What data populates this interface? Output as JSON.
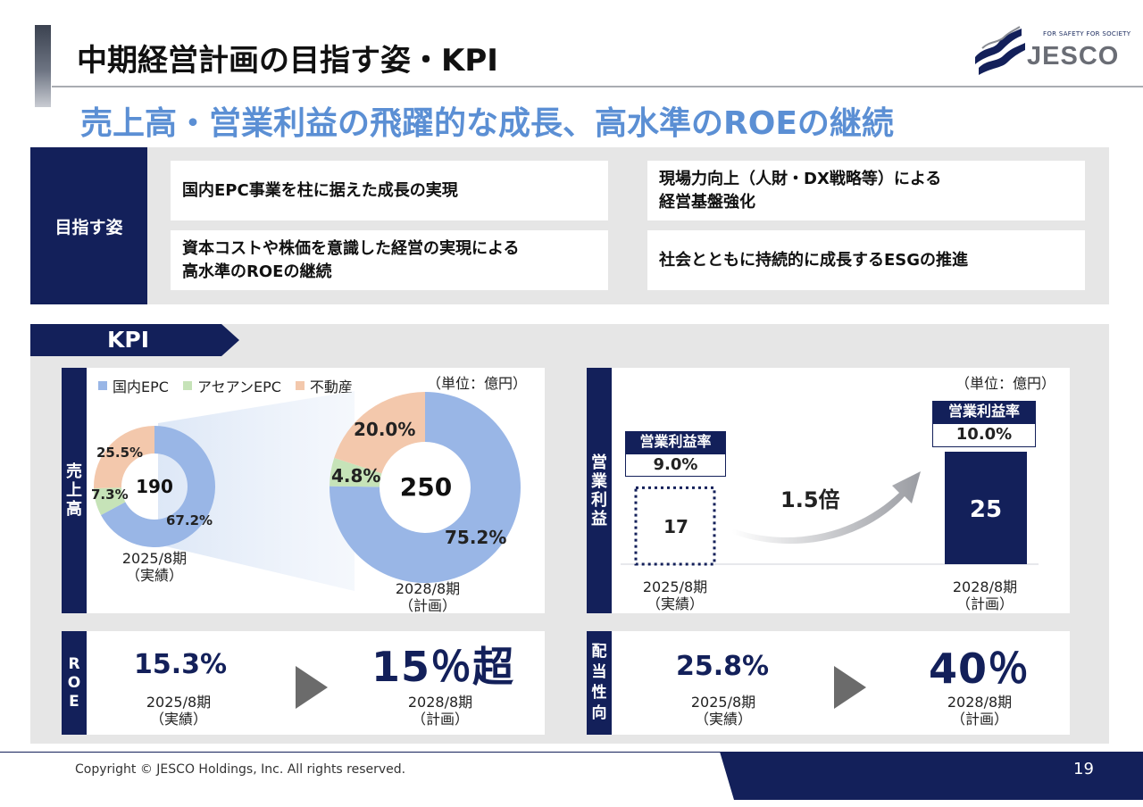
{
  "header": {
    "title": "中期経営計画の目指す姿・KPI",
    "subtitle": "売上高・営業利益の飛躍的な成長、高水準のROEの継続",
    "logo_tagline": "FOR SAFETY FOR SOCIETY",
    "logo_text": "JESCO"
  },
  "goals": {
    "label": "目指す姿",
    "items": [
      "国内EPC事業を柱に据えた成長の実現",
      "現場力向上（人財・DX戦略等）による\n経営基盤強化",
      "資本コストや株価を意識した経営の実現による\n高水準のROEの継続",
      "社会とともに持続的に成長するESGの推進"
    ]
  },
  "kpi": {
    "tab_label": "KPI",
    "sales": {
      "side_label": "売\n上\n高",
      "unit": "（単位：億円）",
      "legend": [
        "国内EPC",
        "アセアンEPC",
        "不動産"
      ],
      "colors": {
        "domestic": "#99b6e6",
        "asean": "#c6e3b8",
        "realestate": "#f3c8ac"
      },
      "actual": {
        "total": "190",
        "period": "2025/8期\n（実績）",
        "labels": {
          "domestic": "67.2%",
          "asean": "7.3%",
          "realestate": "25.5%"
        }
      },
      "plan": {
        "total": "250",
        "period": "2028/8期\n（計画）",
        "labels": {
          "domestic": "75.2%",
          "asean": "4.8%",
          "realestate": "20.0%"
        }
      }
    },
    "op_income": {
      "side_label": "営\n業\n利\n益",
      "unit": "（単位：億円）",
      "margin_heading": "営業利益率",
      "actual": {
        "value": "17",
        "margin": "9.0%",
        "period": "2025/8期\n（実績）"
      },
      "plan": {
        "value": "25",
        "margin": "10.0%",
        "period": "2028/8期\n（計画）"
      },
      "growth_label": "1.5倍"
    },
    "roe": {
      "side_label": "R\nO\nE",
      "actual": {
        "value": "15.3%",
        "period": "2025/8期\n（実績）"
      },
      "plan": {
        "value": "15％超",
        "period": "2028/8期\n（計画）"
      }
    },
    "payout": {
      "side_label": "配\n当\n性\n向",
      "actual": {
        "value": "25.8%",
        "period": "2025/8期\n（実績）"
      },
      "plan": {
        "value": "40％",
        "period": "2028/8期\n（計画）"
      }
    }
  },
  "chart_data": [
    {
      "type": "pie",
      "title": "2025/8期（実績）",
      "total": 190,
      "categories": [
        "国内EPC",
        "アセアンEPC",
        "不動産"
      ],
      "values": [
        67.2,
        7.3,
        25.5
      ]
    },
    {
      "type": "pie",
      "title": "2028/8期（計画）",
      "total": 250,
      "categories": [
        "国内EPC",
        "アセアンEPC",
        "不動産"
      ],
      "values": [
        75.2,
        4.8,
        20.0
      ]
    },
    {
      "type": "bar",
      "title": "営業利益",
      "categories": [
        "2025/8期（実績）",
        "2028/8期（計画）"
      ],
      "values": [
        17,
        25
      ],
      "margins": [
        "9.0%",
        "10.0%"
      ],
      "ylabel": "億円"
    }
  ],
  "footer": {
    "copyright": "Copyright © JESCO Holdings, Inc.  All rights reserved.",
    "page": "19"
  }
}
